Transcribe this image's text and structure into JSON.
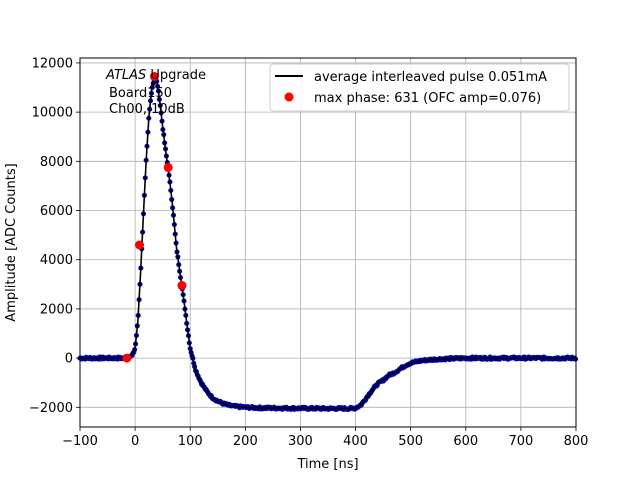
{
  "chart_data": {
    "type": "scatter",
    "xlabel": "Time [ns]",
    "ylabel": "Amplitude [ADC Counts]",
    "xlim": [
      -100,
      800
    ],
    "ylim": [
      -2800,
      12200
    ],
    "x_ticks": [
      -100,
      0,
      100,
      200,
      300,
      400,
      500,
      600,
      700,
      800
    ],
    "x_tick_labels": [
      "−100",
      "0",
      "100",
      "200",
      "300",
      "400",
      "500",
      "600",
      "700",
      "800"
    ],
    "y_ticks": [
      -2000,
      0,
      2000,
      4000,
      6000,
      8000,
      10000,
      12000
    ],
    "y_tick_labels": [
      "−2000",
      "0",
      "2000",
      "4000",
      "6000",
      "8000",
      "10000",
      "12000"
    ],
    "grid": true,
    "legend_position": "top-right",
    "annotation": {
      "line1_italic": "ATLAS",
      "line1_rest": " Upgrade",
      "line2": "Board150",
      "line3": "Ch00, 10dB"
    },
    "series": [
      {
        "name": "average interleaved pulse 0.051mA",
        "style": "line",
        "color": "#000000",
        "x": [
          -100,
          -20,
          -5,
          0,
          5,
          10,
          15,
          20,
          25,
          30,
          35,
          40,
          45,
          50,
          55,
          60,
          65,
          70,
          75,
          80,
          85,
          90,
          95,
          100,
          110,
          120,
          130,
          140,
          150,
          160,
          170,
          180,
          200,
          220,
          250,
          300,
          350,
          390,
          400,
          410,
          420,
          430,
          440,
          450,
          460,
          470,
          480,
          490,
          500,
          520,
          550,
          600,
          700,
          800
        ],
        "y": [
          0,
          0,
          100,
          400,
          1500,
          3500,
          5800,
          8000,
          9800,
          10900,
          11400,
          11200,
          10400,
          9400,
          8500,
          7700,
          6800,
          5700,
          4500,
          3700,
          2900,
          2100,
          1200,
          400,
          -500,
          -1000,
          -1350,
          -1600,
          -1750,
          -1850,
          -1920,
          -1960,
          -2000,
          -2020,
          -2030,
          -2040,
          -2050,
          -2050,
          -2030,
          -1900,
          -1600,
          -1300,
          -1050,
          -900,
          -700,
          -600,
          -450,
          -300,
          -200,
          -100,
          -40,
          0,
          0,
          0
        ]
      },
      {
        "name": "",
        "style": "scatter",
        "color": "#00008b",
        "note": "individual interleaved samples follow the average pulse"
      },
      {
        "name": "max phase: 631 (OFC amp=0.076)",
        "style": "points",
        "color": "#ff0000",
        "x": [
          -15,
          8,
          35,
          60,
          85
        ],
        "y": [
          0,
          4600,
          11450,
          7750,
          2950
        ]
      }
    ]
  }
}
